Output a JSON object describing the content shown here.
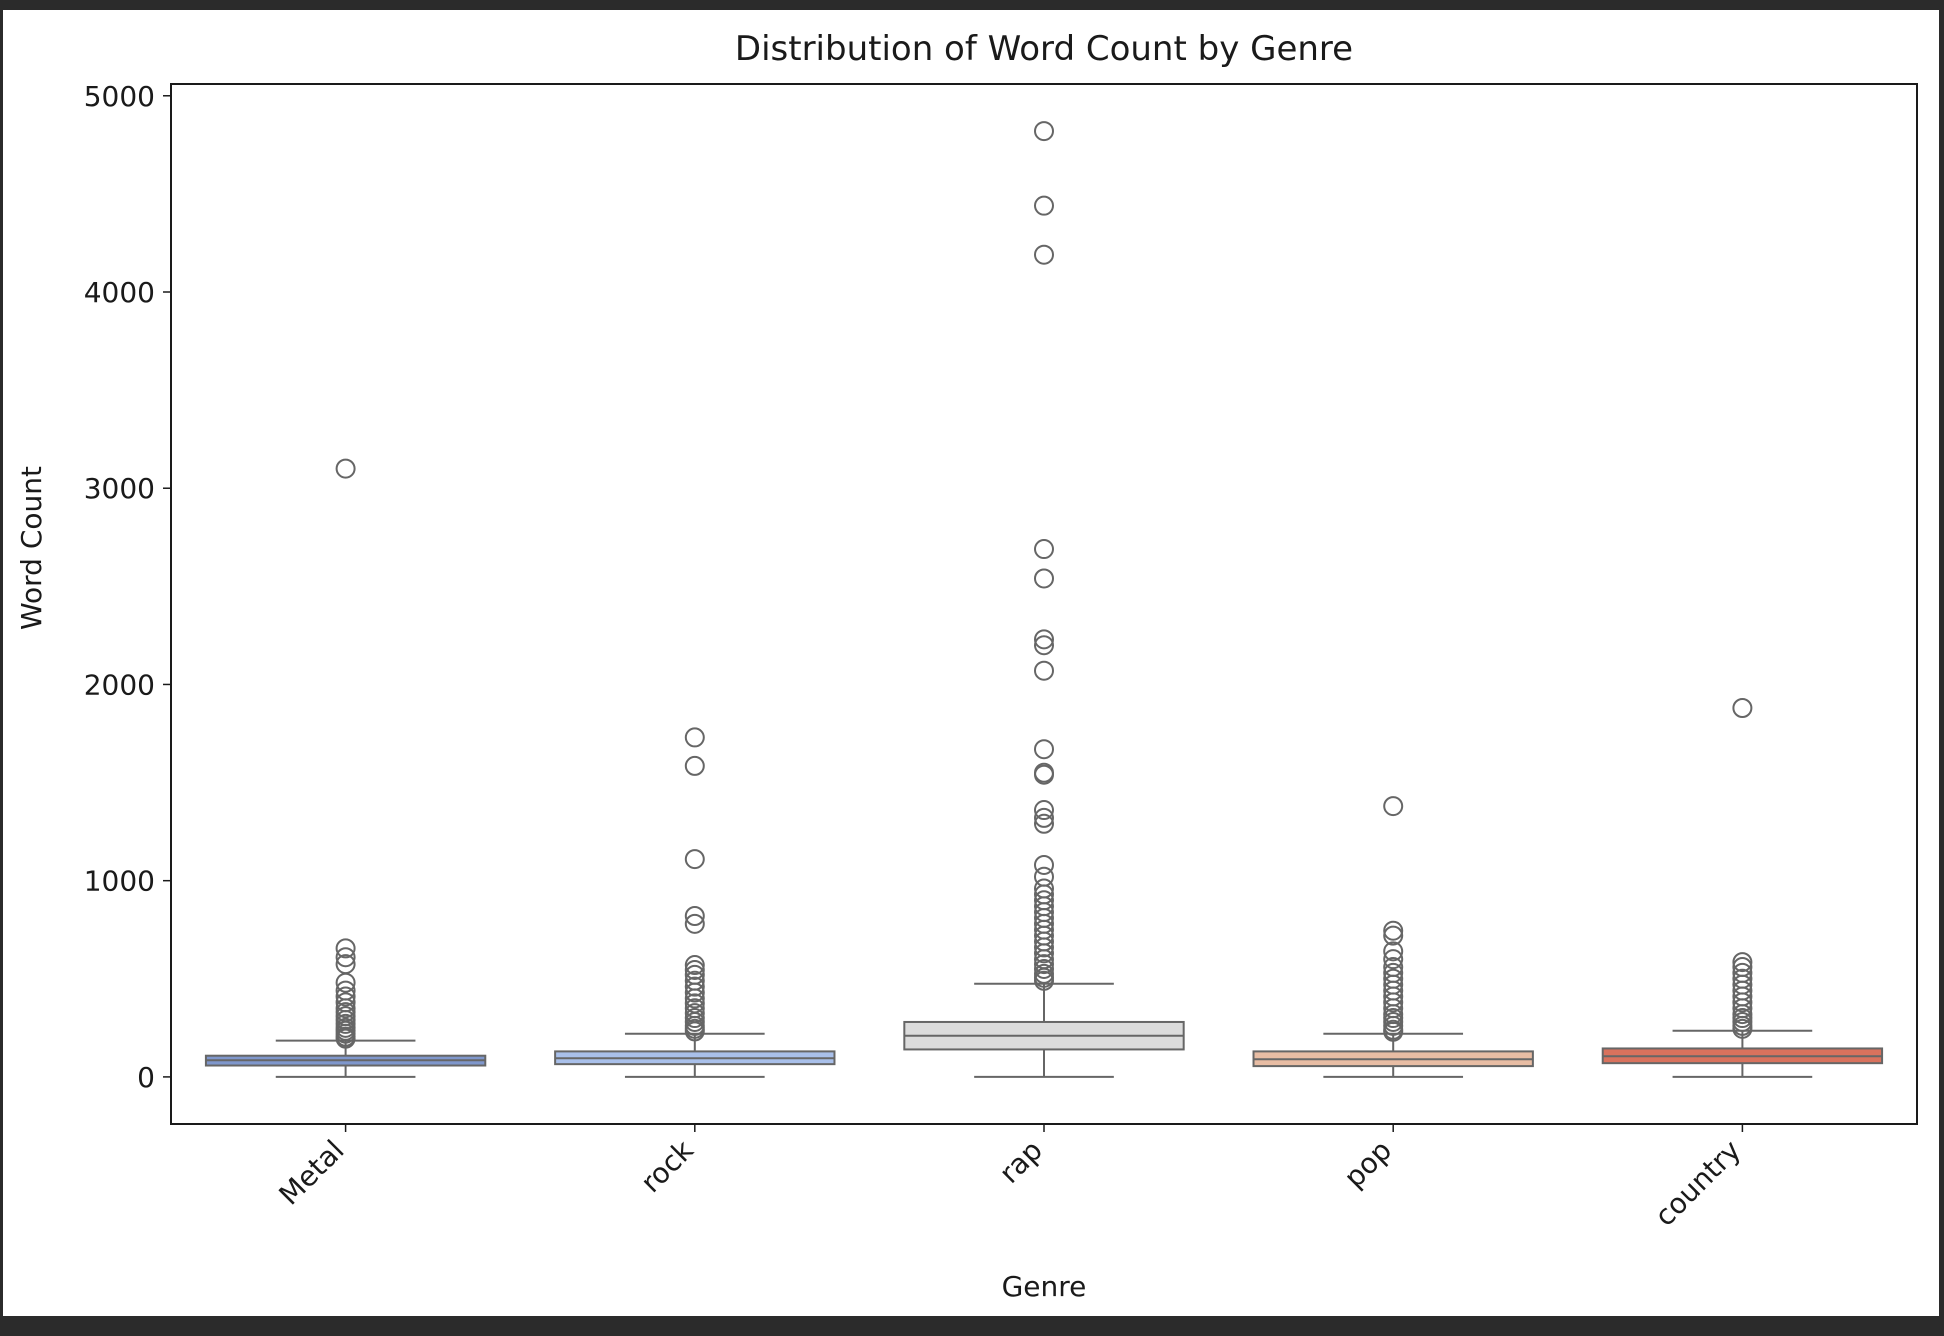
{
  "chart_data": {
    "type": "box",
    "title": "Distribution of Word Count by Genre",
    "xlabel": "Genre",
    "ylabel": "Word Count",
    "ylim": [
      -240,
      5060
    ],
    "yticks": [
      0,
      1000,
      2000,
      3000,
      4000,
      5000
    ],
    "grid": false,
    "legend": "none",
    "categories": [
      "Metal",
      "rock",
      "rap",
      "pop",
      "country"
    ],
    "colors": [
      "#7f97cc",
      "#a9c0ea",
      "#dcdcdc",
      "#e8bda4",
      "#d9725d"
    ],
    "boxes": [
      {
        "category": "Metal",
        "whisker_low": 0,
        "q1": 58,
        "median": 85,
        "q3": 108,
        "whisker_high": 185,
        "outliers": [
          3100,
          655,
          610,
          575,
          480,
          440,
          410,
          380,
          350,
          330,
          310,
          290,
          270,
          250,
          235,
          220,
          205,
          195
        ]
      },
      {
        "category": "rock",
        "whisker_low": 0,
        "q1": 65,
        "median": 95,
        "q3": 130,
        "whisker_high": 220,
        "outliers": [
          1730,
          1585,
          1110,
          820,
          780,
          570,
          545,
          520,
          490,
          460,
          430,
          400,
          375,
          350,
          325,
          300,
          280,
          260,
          245,
          232
        ]
      },
      {
        "category": "rap",
        "whisker_low": 0,
        "q1": 140,
        "median": 210,
        "q3": 280,
        "whisker_high": 475,
        "outliers": [
          4820,
          4440,
          4190,
          2690,
          2540,
          2230,
          2200,
          2070,
          1670,
          1550,
          1540,
          1360,
          1320,
          1290,
          1080,
          1020,
          960,
          930,
          900,
          870,
          840,
          810,
          780,
          750,
          720,
          690,
          660,
          630,
          600,
          575,
          550,
          525,
          505,
          490
        ]
      },
      {
        "category": "pop",
        "whisker_low": 0,
        "q1": 55,
        "median": 90,
        "q3": 130,
        "whisker_high": 220,
        "outliers": [
          1380,
          745,
          720,
          640,
          600,
          560,
          530,
          500,
          470,
          440,
          410,
          380,
          350,
          320,
          300,
          280,
          260,
          240,
          230
        ]
      },
      {
        "category": "country",
        "whisker_low": 0,
        "q1": 70,
        "median": 105,
        "q3": 145,
        "whisker_high": 235,
        "outliers": [
          1880,
          585,
          560,
          530,
          500,
          470,
          440,
          410,
          380,
          350,
          320,
          300,
          280,
          260,
          245
        ]
      }
    ]
  }
}
